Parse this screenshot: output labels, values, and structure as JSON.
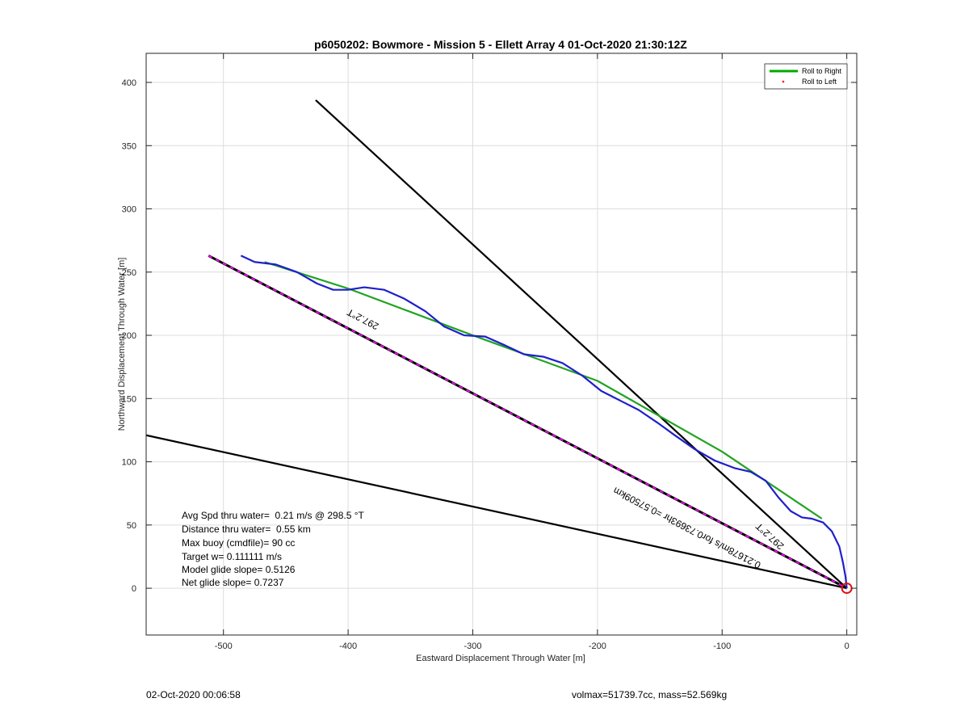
{
  "chart_data": {
    "type": "line",
    "title": "p6050202: Bowmore - Mission 5 - Ellett Array 4 01-Oct-2020 21:30:12Z",
    "xlabel": "Eastward Displacement Through Water [m]",
    "ylabel": "Northward Displacement Through Water [m]",
    "xlim": [
      -562,
      8
    ],
    "ylim": [
      -37,
      423
    ],
    "xticks": [
      -500,
      -400,
      -300,
      -200,
      -100,
      0
    ],
    "yticks": [
      0,
      50,
      100,
      150,
      200,
      250,
      300,
      350,
      400
    ],
    "grid": true,
    "legend_position": "top-right",
    "legend": [
      {
        "label": "Roll to Right",
        "color": "#00aa00",
        "style": "line"
      },
      {
        "label": "Roll to Left",
        "color": "#ff0000",
        "style": "dot"
      }
    ],
    "series": [
      {
        "name": "Roll to Right",
        "color": "#21a321",
        "x": [
          -467,
          -400,
          -300,
          -200,
          -100,
          -20
        ],
        "y": [
          258,
          237,
          200,
          164,
          108,
          55
        ]
      },
      {
        "name": "",
        "color": "#1f1fcc",
        "x": [
          -486,
          -475,
          -458,
          -441,
          -425,
          -412,
          -400,
          -387,
          -371,
          -355,
          -338,
          -323,
          -307,
          -290,
          -274,
          -259,
          -243,
          -228,
          -212,
          -197,
          -181,
          -167,
          -152,
          -138,
          -122,
          -106,
          -90,
          -77,
          -65,
          -55,
          -45,
          -36,
          -28,
          -19,
          -12,
          -6,
          -3,
          -1,
          0
        ],
        "y": [
          263,
          258,
          256,
          250,
          241,
          236,
          236,
          238,
          236,
          229,
          219,
          207,
          200,
          199,
          192,
          185,
          183,
          178,
          168,
          156,
          148,
          141,
          131,
          121,
          110,
          101,
          95,
          92,
          85,
          72,
          61,
          56,
          55,
          52,
          45,
          33,
          20,
          9,
          0
        ]
      },
      {
        "name": "",
        "color": "#000000",
        "x": [
          -426,
          0
        ],
        "y": [
          386,
          0
        ]
      },
      {
        "name": "",
        "color": "#000000",
        "x": [
          -562,
          0
        ],
        "y": [
          121,
          0
        ]
      },
      {
        "name": "",
        "color": "#000000",
        "dash_color": "#ff00ff",
        "x": [
          -512,
          0
        ],
        "y": [
          263,
          0
        ]
      }
    ],
    "marker": {
      "x": 0,
      "y": 0,
      "color": "#e01010"
    },
    "line_labels": [
      {
        "text": "297.2°T",
        "x": -387,
        "y": 215
      },
      {
        "text": "297.2°T",
        "x": -60,
        "y": 43
      },
      {
        "text": "0.21678m/s for0.73693hr =0.57509km",
        "x": -127,
        "y": 50
      }
    ]
  },
  "annotations": [
    "Avg Spd thru water=  0.21 m/s @ 298.5 °T",
    "Distance thru water=  0.55 km",
    "Max buoy (cmdfile)= 90 cc",
    "Target w= 0.111111 m/s",
    "Model glide slope= 0.5126",
    "Net glide slope= 0.7237"
  ],
  "footer": {
    "left": "02-Oct-2020 00:06:58",
    "right": "volmax=51739.7cc, mass=52.569kg"
  }
}
